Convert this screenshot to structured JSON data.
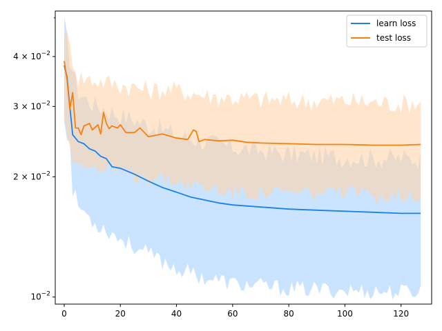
{
  "chart_data": {
    "type": "line",
    "title": "",
    "xlabel": "",
    "ylabel": "",
    "xlim": [
      -3.2,
      130.9
    ],
    "ylim": [
      0.0096,
      0.052
    ],
    "yscale": "log",
    "grid": false,
    "legend_position": "top-right",
    "x_ticks": [
      {
        "value": 0,
        "label": "0"
      },
      {
        "value": 20,
        "label": "20"
      },
      {
        "value": 40,
        "label": "40"
      },
      {
        "value": 60,
        "label": "60"
      },
      {
        "value": 80,
        "label": "80"
      },
      {
        "value": 100,
        "label": "100"
      },
      {
        "value": 120,
        "label": "120"
      }
    ],
    "y_ticks": [
      {
        "value": 0.01,
        "base": "10",
        "exp": "−2",
        "coef": ""
      },
      {
        "value": 0.02,
        "base": "10",
        "exp": "−2",
        "coef": "2 × "
      },
      {
        "value": 0.03,
        "base": "10",
        "exp": "−2",
        "coef": "3 × "
      },
      {
        "value": 0.04,
        "base": "10",
        "exp": "−2",
        "coef": "4 × "
      }
    ],
    "series": [
      {
        "name": "learn loss",
        "color": "#1f77b4",
        "line_color": "#1a80e8",
        "band_color": "#a6d2ff",
        "points": [
          [
            0,
            0.038
          ],
          [
            1,
            0.0355
          ],
          [
            2,
            0.03
          ],
          [
            3,
            0.0255
          ],
          [
            5,
            0.0245
          ],
          [
            7,
            0.0242
          ],
          [
            9,
            0.0235
          ],
          [
            11,
            0.0232
          ],
          [
            13,
            0.0225
          ],
          [
            15,
            0.0222
          ],
          [
            17,
            0.0212
          ],
          [
            20,
            0.021
          ],
          [
            25,
            0.0203
          ],
          [
            30,
            0.0195
          ],
          [
            35,
            0.0188
          ],
          [
            40,
            0.0183
          ],
          [
            45,
            0.0178
          ],
          [
            50,
            0.0175
          ],
          [
            55,
            0.0172
          ],
          [
            60,
            0.017
          ],
          [
            70,
            0.0168
          ],
          [
            80,
            0.0166
          ],
          [
            90,
            0.0165
          ],
          [
            100,
            0.0164
          ],
          [
            110,
            0.0163
          ],
          [
            120,
            0.0162
          ],
          [
            127,
            0.0162
          ]
        ],
        "band_upper": [
          [
            0,
            0.048
          ],
          [
            2,
            0.0395
          ],
          [
            5,
            0.0325
          ],
          [
            10,
            0.0305
          ],
          [
            20,
            0.0285
          ],
          [
            30,
            0.027
          ],
          [
            40,
            0.0255
          ],
          [
            50,
            0.0245
          ],
          [
            60,
            0.0237
          ],
          [
            80,
            0.0228
          ],
          [
            100,
            0.0224
          ],
          [
            127,
            0.0222
          ]
        ],
        "band_lower": [
          [
            0,
            0.028
          ],
          [
            2,
            0.024
          ],
          [
            3,
            0.0185
          ],
          [
            5,
            0.017
          ],
          [
            10,
            0.0155
          ],
          [
            20,
            0.014
          ],
          [
            30,
            0.0128
          ],
          [
            40,
            0.0118
          ],
          [
            50,
            0.0112
          ],
          [
            60,
            0.0108
          ],
          [
            80,
            0.0105
          ],
          [
            100,
            0.0104
          ],
          [
            120,
            0.0103
          ],
          [
            127,
            0.0104
          ]
        ]
      },
      {
        "name": "test loss",
        "color": "#ff7f0e",
        "line_color": "#f5800e",
        "band_color": "#ffd4aa",
        "points": [
          [
            0,
            0.039
          ],
          [
            1,
            0.035
          ],
          [
            2,
            0.0295
          ],
          [
            3,
            0.0325
          ],
          [
            4,
            0.0265
          ],
          [
            5,
            0.0265
          ],
          [
            6,
            0.0255
          ],
          [
            7,
            0.0268
          ],
          [
            9,
            0.0272
          ],
          [
            10,
            0.0262
          ],
          [
            12,
            0.027
          ],
          [
            13,
            0.0256
          ],
          [
            14,
            0.029
          ],
          [
            15,
            0.0272
          ],
          [
            16,
            0.0264
          ],
          [
            17,
            0.0268
          ],
          [
            19,
            0.0265
          ],
          [
            20,
            0.027
          ],
          [
            22,
            0.0258
          ],
          [
            25,
            0.0258
          ],
          [
            27,
            0.0265
          ],
          [
            30,
            0.0252
          ],
          [
            35,
            0.0256
          ],
          [
            40,
            0.025
          ],
          [
            44,
            0.0248
          ],
          [
            46,
            0.0262
          ],
          [
            47,
            0.026
          ],
          [
            48,
            0.0245
          ],
          [
            50,
            0.0248
          ],
          [
            55,
            0.0246
          ],
          [
            60,
            0.0247
          ],
          [
            65,
            0.0244
          ],
          [
            70,
            0.0243
          ],
          [
            80,
            0.0242
          ],
          [
            90,
            0.0241
          ],
          [
            100,
            0.0241
          ],
          [
            110,
            0.024
          ],
          [
            120,
            0.024
          ],
          [
            127,
            0.0241
          ]
        ],
        "band_upper": [
          [
            0,
            0.047
          ],
          [
            2,
            0.042
          ],
          [
            5,
            0.0355
          ],
          [
            10,
            0.035
          ],
          [
            20,
            0.034
          ],
          [
            30,
            0.033
          ],
          [
            40,
            0.033
          ],
          [
            50,
            0.032
          ],
          [
            60,
            0.0315
          ],
          [
            80,
            0.031
          ],
          [
            100,
            0.031
          ],
          [
            120,
            0.0305
          ],
          [
            127,
            0.0308
          ]
        ],
        "band_lower": [
          [
            0,
            0.028
          ],
          [
            2,
            0.024
          ],
          [
            3,
            0.0215
          ],
          [
            5,
            0.0225
          ],
          [
            10,
            0.021
          ],
          [
            20,
            0.0205
          ],
          [
            30,
            0.02
          ],
          [
            40,
            0.0195
          ],
          [
            50,
            0.0188
          ],
          [
            60,
            0.0183
          ],
          [
            80,
            0.0182
          ],
          [
            100,
            0.0182
          ],
          [
            120,
            0.018
          ],
          [
            127,
            0.0181
          ]
        ]
      }
    ]
  }
}
